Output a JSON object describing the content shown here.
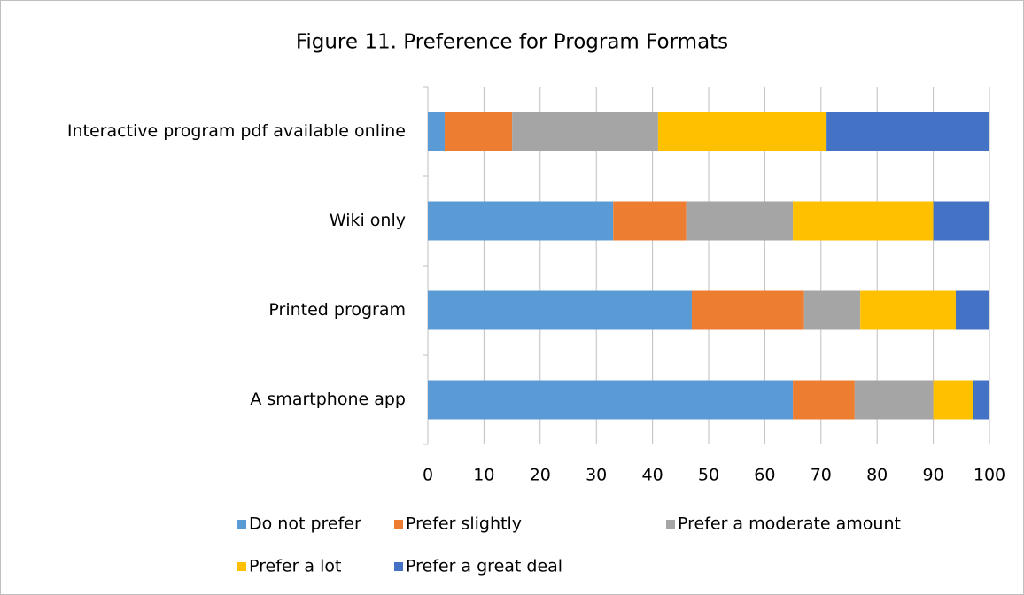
{
  "chart_data": {
    "type": "stacked-bar-horizontal",
    "title": "Figure 11. Preference for Program Formats",
    "categories": [
      "Interactive program pdf available online",
      "Wiki only",
      "Printed program",
      "A smartphone app"
    ],
    "series": [
      {
        "name": "Do not prefer",
        "color": "#5b9bd5",
        "values": [
          3,
          33,
          47,
          65
        ]
      },
      {
        "name": "Prefer slightly",
        "color": "#ed7d31",
        "values": [
          12,
          13,
          20,
          11
        ]
      },
      {
        "name": "Prefer a moderate amount",
        "color": "#a5a5a5",
        "values": [
          26,
          19,
          10,
          14
        ]
      },
      {
        "name": "Prefer a lot",
        "color": "#ffc000",
        "values": [
          30,
          25,
          17,
          7
        ]
      },
      {
        "name": "Prefer a great deal",
        "color": "#4472c4",
        "values": [
          29,
          10,
          6,
          3
        ]
      }
    ],
    "xlim": [
      0,
      100
    ],
    "xticks": [
      0,
      10,
      20,
      30,
      40,
      50,
      60,
      70,
      80,
      90,
      100
    ],
    "grid": true
  }
}
